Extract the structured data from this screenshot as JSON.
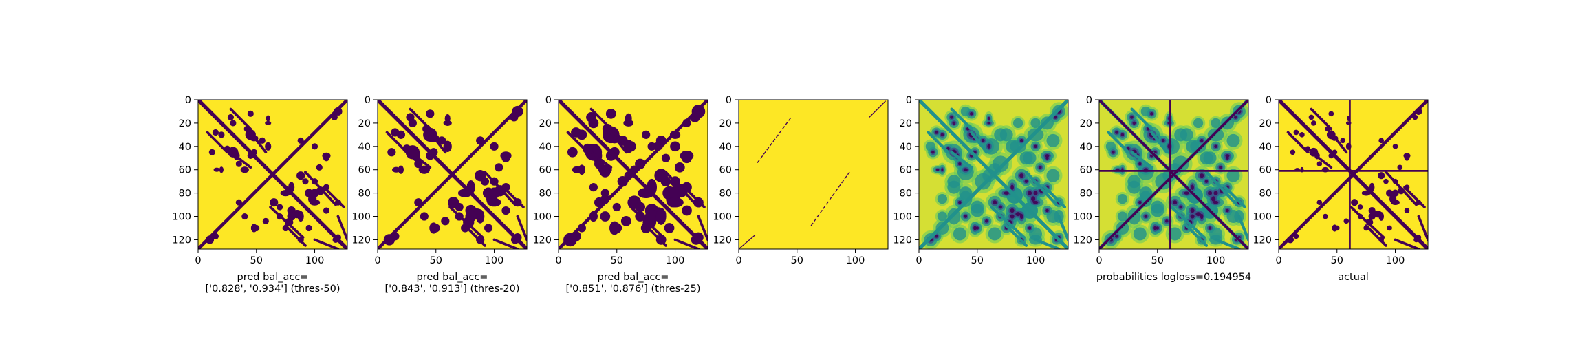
{
  "colors": {
    "dark": "#440154",
    "teal": "#21918c",
    "green": "#5ec962",
    "yellow": "#fde725",
    "axis": "#000000"
  },
  "chart_data": [
    {
      "type": "heatmap",
      "colormap": "viridis",
      "size": 128,
      "xticks": [
        0,
        50,
        100
      ],
      "yticks": [
        0,
        20,
        40,
        60,
        80,
        100,
        120
      ],
      "xlim": [
        0,
        128
      ],
      "ylim": [
        128,
        0
      ],
      "xlabel": [
        "pred bal_acc=",
        "['0.828', '0.934'] (thres-50)"
      ]
    },
    {
      "type": "heatmap",
      "colormap": "viridis",
      "size": 128,
      "xticks": [
        0,
        50,
        100
      ],
      "yticks": [
        0,
        20,
        40,
        60,
        80,
        100,
        120
      ],
      "xlim": [
        0,
        128
      ],
      "ylim": [
        128,
        0
      ],
      "xlabel": [
        "pred bal_acc=",
        "['0.843', '0.913'] (thres-20)"
      ]
    },
    {
      "type": "heatmap",
      "colormap": "viridis",
      "size": 128,
      "xticks": [
        0,
        50,
        100
      ],
      "yticks": [
        0,
        20,
        40,
        60,
        80,
        100,
        120
      ],
      "xlim": [
        0,
        128
      ],
      "ylim": [
        128,
        0
      ],
      "xlabel": [
        "pred bal_acc=",
        "['0.851', '0.876'] (thres-25)"
      ]
    },
    {
      "type": "heatmap",
      "colormap": "viridis",
      "size": 128,
      "xticks": [
        0,
        50,
        100
      ],
      "yticks": [
        0,
        20,
        40,
        60,
        80,
        100,
        120
      ],
      "xlim": [
        0,
        128
      ],
      "ylim": [
        128,
        0
      ],
      "xlabel": []
    },
    {
      "type": "heatmap",
      "colormap": "viridis",
      "size": 128,
      "xticks": [
        0,
        50,
        100
      ],
      "yticks": [
        0,
        20,
        40,
        60,
        80,
        100,
        120
      ],
      "xlim": [
        0,
        128
      ],
      "ylim": [
        128,
        0
      ],
      "xlabel": []
    },
    {
      "type": "heatmap",
      "colormap": "viridis",
      "size": 128,
      "xticks": [
        0,
        50,
        100
      ],
      "yticks": [
        0,
        20,
        40,
        60,
        80,
        100,
        120
      ],
      "xlim": [
        0,
        128
      ],
      "ylim": [
        128,
        0
      ],
      "xlabel": [
        "probabilities logloss=0.194954"
      ]
    },
    {
      "type": "heatmap",
      "colormap": "viridis",
      "size": 128,
      "xticks": [
        0,
        50,
        100
      ],
      "yticks": [
        0,
        20,
        40,
        60,
        80,
        100,
        120
      ],
      "xlim": [
        0,
        128
      ],
      "ylim": [
        128,
        0
      ],
      "xlabel": [
        "actual"
      ]
    }
  ]
}
